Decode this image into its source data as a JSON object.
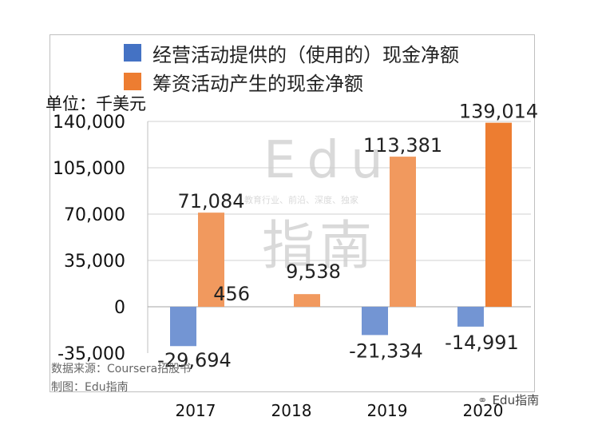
{
  "chart_data": {
    "type": "bar",
    "categories": [
      "2017",
      "2018",
      "2019",
      "2020"
    ],
    "series": [
      {
        "name": "经营活动提供的（使用的）现金净额",
        "color": "#4472c4",
        "values": [
          -29694,
          null,
          -21334,
          -14991
        ]
      },
      {
        "name": "筹资活动产生的现金净额",
        "color": "#ed7d31",
        "values": [
          71084,
          9538,
          113381,
          139014
        ]
      }
    ],
    "extra_labels": [
      {
        "category": "2018",
        "text": "456"
      }
    ],
    "data_labels": [
      [
        "-29,694",
        "",
        "-21,334",
        "-14,991"
      ],
      [
        "71,084",
        "9,538",
        "113,381",
        "139,014"
      ]
    ],
    "yticks": [
      -35000,
      0,
      35000,
      70000,
      105000,
      140000
    ],
    "ytick_labels": [
      "-35,000",
      "0",
      "35,000",
      "70,000",
      "105,000",
      "140,000"
    ],
    "ylim": [
      -35000,
      140000
    ],
    "unit_label": "单位：千美元",
    "grid": true,
    "legend_position": "top"
  },
  "source_note": "数据来源：Coursera招股书",
  "made_by": "制图：Edu指南",
  "watermark": {
    "brand": "Edu",
    "slogan": "教育行业、前沿、深度、独家",
    "cn": "指南"
  },
  "corner_brand": "Edu指南"
}
